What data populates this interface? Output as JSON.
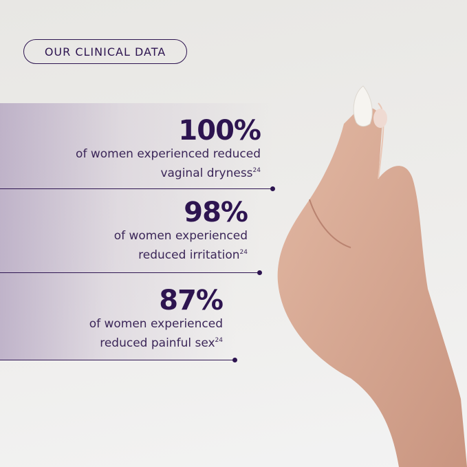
{
  "badge": "OUR CLINICAL DATA",
  "stats": [
    {
      "value": "100%",
      "line1": "of women experienced reduced",
      "line2": "vaginal dryness",
      "footnote": "24"
    },
    {
      "value": "98%",
      "line1": "of women experienced",
      "line2": "reduced irritation",
      "footnote": "24"
    },
    {
      "value": "87%",
      "line1": "of women experienced",
      "line2": "reduced painful sex",
      "footnote": "24"
    }
  ],
  "colors": {
    "accent": "#2d1450",
    "band": "#b0a0be",
    "background": "#e9e8e6",
    "skin": "#d8a891"
  }
}
